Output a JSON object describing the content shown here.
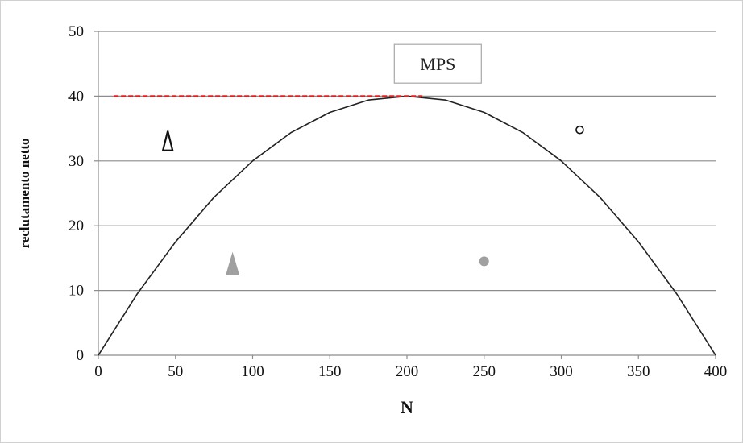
{
  "chart_data": {
    "type": "line",
    "title": "",
    "xlabel": "N",
    "ylabel": "reclutamento netto",
    "xlim": [
      0,
      400
    ],
    "ylim": [
      0,
      50
    ],
    "x_ticks": [
      0,
      50,
      100,
      150,
      200,
      250,
      300,
      350,
      400
    ],
    "y_ticks": [
      0,
      10,
      20,
      30,
      40,
      50
    ],
    "grid": "horizontal",
    "legend": "none",
    "series": [
      {
        "type": "line",
        "color": "#222222",
        "x": [
          0,
          25,
          50,
          75,
          100,
          125,
          150,
          175,
          200,
          225,
          250,
          275,
          300,
          325,
          350,
          375,
          400
        ],
        "y": [
          0,
          9.4,
          17.5,
          24.4,
          30,
          34.4,
          37.5,
          39.4,
          40,
          39.4,
          37.5,
          34.4,
          30,
          24.4,
          17.5,
          9.4,
          0
        ]
      }
    ],
    "reference_line": {
      "x": [
        10,
        210
      ],
      "y": [
        40,
        40
      ],
      "color": "#e02020",
      "style": "dashed"
    },
    "annotations": [
      {
        "text": "MPS",
        "near_x": 220,
        "near_y": 45
      }
    ],
    "markers": [
      {
        "shape": "triangle-open",
        "x": 45,
        "y": 33,
        "color": "#111111"
      },
      {
        "shape": "triangle-filled",
        "x": 87,
        "y": 14,
        "color": "#a0a0a0"
      },
      {
        "shape": "circle-filled",
        "x": 250,
        "y": 14.5,
        "color": "#a0a0a0"
      },
      {
        "shape": "circle-open",
        "x": 312,
        "y": 34.8,
        "color": "#111111"
      }
    ]
  }
}
